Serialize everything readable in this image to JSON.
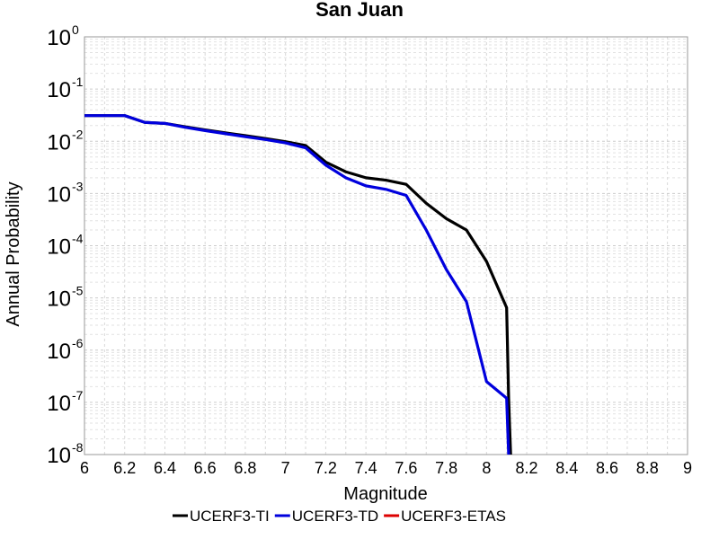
{
  "chart_data": {
    "type": "line",
    "title": "San Juan",
    "xlabel": "Magnitude",
    "ylabel": "Annual Probability",
    "xlim": [
      6,
      9
    ],
    "ylim": [
      1e-08,
      1
    ],
    "yscale": "log",
    "grid": true,
    "legend_placement": "bottom",
    "x_ticks": [
      "6",
      "6.2",
      "6.4",
      "6.6",
      "6.8",
      "7",
      "7.2",
      "7.4",
      "7.6",
      "7.8",
      "8",
      "8.2",
      "8.4",
      "8.6",
      "8.8",
      "9"
    ],
    "y_ticks": [
      {
        "base": "10",
        "exp": "0"
      },
      {
        "base": "10",
        "exp": "-1"
      },
      {
        "base": "10",
        "exp": "-2"
      },
      {
        "base": "10",
        "exp": "-3"
      },
      {
        "base": "10",
        "exp": "-4"
      },
      {
        "base": "10",
        "exp": "-5"
      },
      {
        "base": "10",
        "exp": "-6"
      },
      {
        "base": "10",
        "exp": "-7"
      },
      {
        "base": "10",
        "exp": "-8"
      }
    ],
    "series": [
      {
        "name": "UCERF3-TI",
        "color": "#000000",
        "x": [
          6.0,
          6.1,
          6.2,
          6.3,
          6.4,
          6.5,
          6.6,
          6.7,
          6.8,
          6.9,
          7.0,
          7.1,
          7.2,
          7.3,
          7.4,
          7.5,
          7.6,
          7.7,
          7.8,
          7.9,
          8.0,
          8.1,
          8.11,
          8.12
        ],
        "y": [
          0.031,
          0.031,
          0.031,
          0.023,
          0.022,
          0.019,
          0.0165,
          0.0145,
          0.0128,
          0.0113,
          0.0098,
          0.0083,
          0.004,
          0.0026,
          0.002,
          0.0018,
          0.0015,
          0.00065,
          0.00033,
          0.0002,
          5e-05,
          6.5e-06,
          1.2e-07,
          1e-08
        ]
      },
      {
        "name": "UCERF3-TD",
        "color": "#0000dd",
        "x": [
          6.0,
          6.1,
          6.2,
          6.3,
          6.4,
          6.5,
          6.6,
          6.7,
          6.8,
          6.9,
          7.0,
          7.1,
          7.2,
          7.3,
          7.4,
          7.5,
          7.6,
          7.7,
          7.8,
          7.9,
          8.0,
          8.1,
          8.11
        ],
        "y": [
          0.031,
          0.031,
          0.031,
          0.023,
          0.022,
          0.0185,
          0.016,
          0.014,
          0.0122,
          0.0108,
          0.0093,
          0.0075,
          0.0035,
          0.002,
          0.0014,
          0.0012,
          0.00092,
          0.0002,
          3.5e-05,
          8.5e-06,
          2.5e-07,
          1.2e-07,
          1e-08
        ]
      },
      {
        "name": "UCERF3-ETAS",
        "color": "#dd0000",
        "x": [],
        "y": []
      }
    ]
  }
}
